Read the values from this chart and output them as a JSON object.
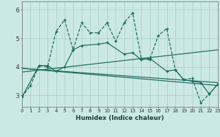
{
  "xlabel": "Humidex (Indice chaleur)",
  "bg_color": "#cce8e4",
  "grid_color": "#aacfcb",
  "line_color": "#1a6b5e",
  "x_ticks": [
    0,
    1,
    2,
    3,
    4,
    5,
    6,
    7,
    8,
    9,
    10,
    11,
    12,
    13,
    14,
    15,
    16,
    17,
    18,
    19,
    20,
    21,
    22,
    23
  ],
  "ylim": [
    2.6,
    6.3
  ],
  "xlim": [
    0,
    23
  ],
  "yticks": [
    3,
    4,
    5,
    6
  ],
  "series1_x": [
    0,
    1,
    2,
    3,
    4,
    5,
    6,
    7,
    8,
    9,
    10,
    11,
    12,
    13,
    14,
    15,
    16,
    17,
    18,
    19,
    20,
    21,
    22,
    23
  ],
  "series1_y": [
    2.95,
    3.35,
    4.05,
    4.0,
    5.25,
    5.65,
    4.6,
    5.55,
    5.2,
    5.2,
    5.55,
    4.9,
    5.55,
    5.9,
    4.3,
    4.25,
    5.1,
    5.35,
    3.9,
    3.55,
    3.6,
    2.75,
    3.05,
    3.4
  ],
  "series2_x": [
    0,
    2,
    3,
    4,
    5,
    6,
    7,
    9,
    10,
    12,
    13,
    14,
    15,
    17,
    18,
    19,
    20,
    21,
    22,
    23
  ],
  "series2_y": [
    2.95,
    4.05,
    4.05,
    3.85,
    4.0,
    4.6,
    4.75,
    4.8,
    4.85,
    4.45,
    4.5,
    4.25,
    4.3,
    3.85,
    3.9,
    3.55,
    3.5,
    3.45,
    3.05,
    3.4
  ],
  "trend1_x": [
    0,
    23
  ],
  "trend1_y": [
    3.82,
    4.6
  ],
  "trend2_x": [
    0,
    23
  ],
  "trend2_y": [
    3.95,
    3.35
  ],
  "trend3_x": [
    0,
    23
  ],
  "trend3_y": [
    3.95,
    3.45
  ]
}
